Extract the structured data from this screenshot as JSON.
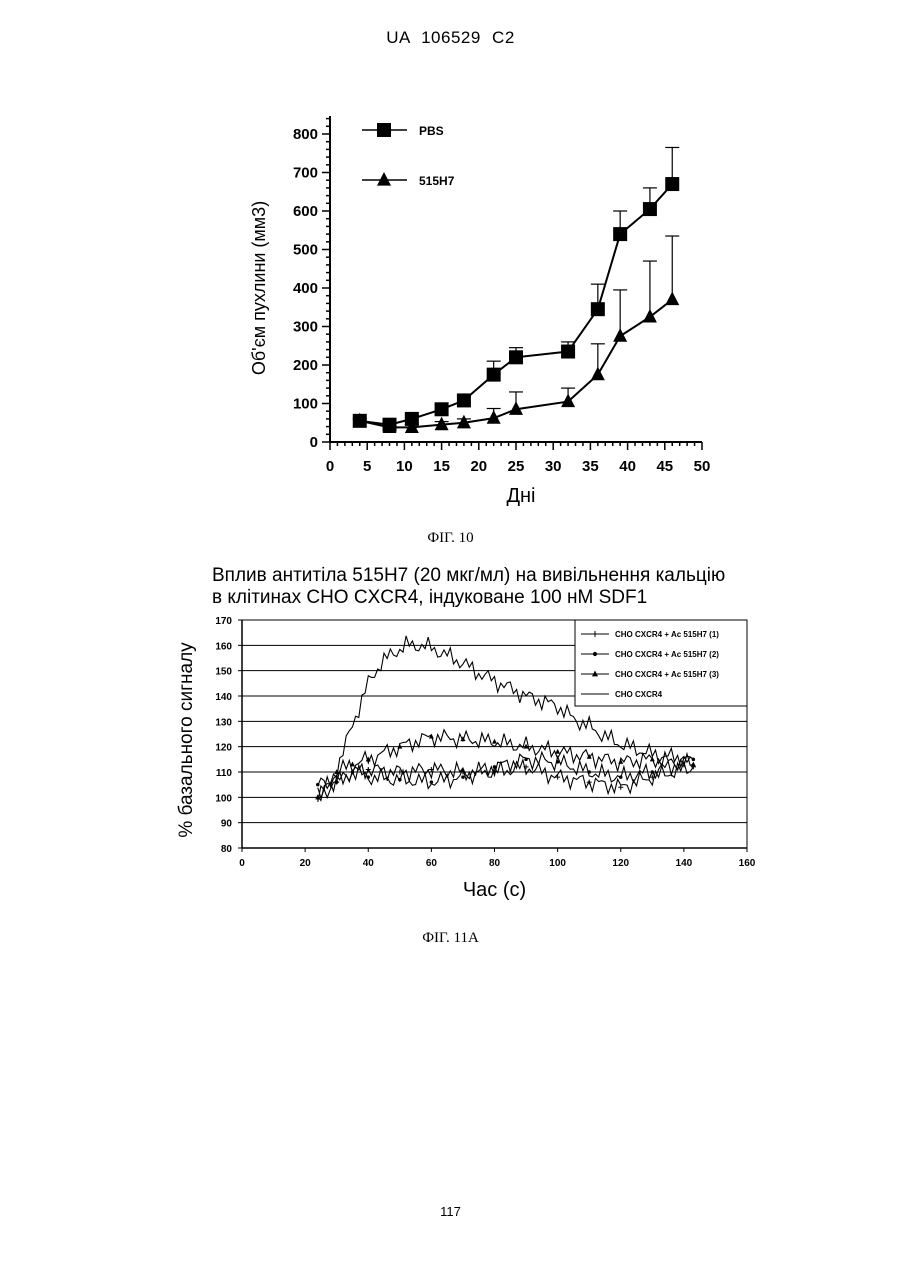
{
  "header": {
    "text": "UA   106529   C2"
  },
  "page_number": "117",
  "fig10": {
    "caption": "ФІГ. 10"
  },
  "fig11": {
    "caption": "ФІГ. 11А",
    "title_line1": "Вплив антитіла 515Н7 (20 мкг/мл) на вивільнення кальцію",
    "title_line2": "в клітинах CHO CXCR4, індуковане 100 нМ SDF1"
  },
  "chart_data": [
    {
      "type": "line",
      "title": "",
      "xlabel": "Дні",
      "ylabel": "Об'єм пухлини (мм3)",
      "xlim": [
        0,
        50
      ],
      "ylim": [
        0,
        800
      ],
      "x_ticks": [
        0,
        5,
        10,
        15,
        20,
        25,
        30,
        35,
        40,
        45,
        50
      ],
      "y_ticks": [
        0,
        100,
        200,
        300,
        400,
        500,
        600,
        700,
        800
      ],
      "legend_position": "top-left",
      "series": [
        {
          "name": "PBS",
          "marker": "square",
          "x": [
            4,
            8,
            11,
            15,
            18,
            22,
            25,
            32,
            36,
            39,
            43,
            46
          ],
          "y": [
            55,
            45,
            60,
            85,
            108,
            175,
            220,
            235,
            345,
            540,
            605,
            670
          ],
          "error": [
            5,
            8,
            10,
            10,
            12,
            35,
            25,
            25,
            65,
            60,
            55,
            95
          ]
        },
        {
          "name": "515H7",
          "marker": "triangle",
          "x": [
            4,
            8,
            11,
            15,
            18,
            22,
            25,
            32,
            36,
            39,
            43,
            46
          ],
          "y": [
            55,
            38,
            38,
            45,
            50,
            62,
            85,
            105,
            175,
            275,
            325,
            370
          ],
          "error": [
            5,
            5,
            8,
            8,
            10,
            25,
            45,
            35,
            80,
            120,
            145,
            165
          ]
        }
      ]
    },
    {
      "type": "line",
      "title": "Вплив антитіла 515Н7 (20 мкг/мл) на вивільнення кальцію в клітинах CHO CXCR4, індуковане 100 нМ SDF1",
      "xlabel": "Час (с)",
      "ylabel": "% базального сигналу",
      "xlim": [
        0,
        160
      ],
      "ylim": [
        80,
        170
      ],
      "x_ticks": [
        0,
        20,
        40,
        60,
        80,
        100,
        120,
        140,
        160
      ],
      "y_ticks": [
        80,
        90,
        100,
        110,
        120,
        130,
        140,
        150,
        160,
        170
      ],
      "grid": "horizontal",
      "legend_position": "top-right",
      "series": [
        {
          "name": "CHO CXCR4 + Ac 515H7 (1)",
          "marker": "plus",
          "x": [
            24,
            30,
            35,
            40,
            50,
            60,
            70,
            80,
            90,
            100,
            110,
            120,
            130,
            143
          ],
          "y": [
            100,
            106,
            110,
            111,
            110,
            111,
            110,
            110,
            112,
            108,
            106,
            104,
            108,
            112
          ]
        },
        {
          "name": "CHO CXCR4 + Ac 515H7 (2)",
          "marker": "dot",
          "x": [
            24,
            30,
            35,
            40,
            50,
            60,
            70,
            80,
            90,
            100,
            110,
            120,
            130,
            143
          ],
          "y": [
            105,
            106,
            110,
            108,
            107,
            106,
            108,
            112,
            115,
            114,
            110,
            108,
            110,
            115
          ]
        },
        {
          "name": "CHO CXCR4 + Ac 515H7 (3)",
          "marker": "triangle",
          "x": [
            24,
            30,
            35,
            40,
            50,
            60,
            70,
            80,
            90,
            100,
            110,
            120,
            130,
            143
          ],
          "y": [
            100,
            110,
            113,
            115,
            120,
            124,
            123,
            122,
            120,
            118,
            116,
            114,
            115,
            113
          ]
        },
        {
          "name": "CHO CXCR4",
          "marker": "none",
          "x": [
            24,
            28,
            32,
            36,
            40,
            44,
            48,
            52,
            56,
            60,
            65,
            70,
            75,
            80,
            85,
            90,
            95,
            100,
            105,
            110,
            115,
            120,
            125,
            130,
            135,
            143
          ],
          "y": [
            100,
            105,
            118,
            132,
            145,
            153,
            157,
            160,
            160,
            159,
            156,
            153,
            149,
            146,
            143,
            140,
            138,
            136,
            131,
            128,
            124,
            121,
            119,
            117,
            116,
            115
          ]
        }
      ]
    }
  ]
}
